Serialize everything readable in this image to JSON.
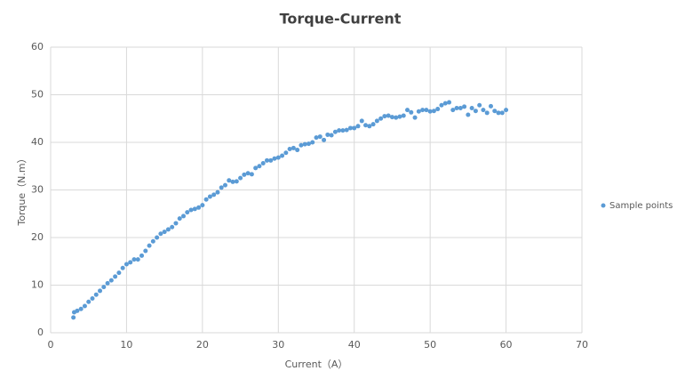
{
  "chart_data": {
    "type": "scatter",
    "title": "Torque-Current",
    "x_label": "Current（A）",
    "y_label": "Torque（N.m）",
    "x": [
      3.0,
      3.1,
      3.5,
      4,
      4.5,
      5,
      5.5,
      6,
      6.5,
      7,
      7.5,
      8,
      8.5,
      9,
      9.5,
      10,
      10.5,
      11,
      11.5,
      12,
      12.5,
      13,
      13.5,
      14,
      14.5,
      15,
      15.5,
      16,
      16.5,
      17,
      17.5,
      18,
      18.5,
      19,
      19.5,
      20,
      20.5,
      21,
      21.5,
      22,
      22.5,
      23,
      23.5,
      24,
      24.5,
      25,
      25.5,
      26,
      26.5,
      27,
      27.5,
      28,
      28.5,
      29,
      29.5,
      30,
      30.5,
      31,
      31.5,
      32,
      32.5,
      33,
      33.5,
      34,
      34.5,
      35,
      35.5,
      36,
      36.5,
      37,
      37.5,
      38,
      38.5,
      39,
      39.5,
      40,
      40.5,
      41,
      41.5,
      42,
      42.5,
      43,
      43.5,
      44,
      44.5,
      45,
      45.5,
      46,
      46.5,
      47,
      47.5,
      48,
      48.5,
      49,
      49.5,
      50,
      50.5,
      51,
      51.5,
      52,
      52.5,
      53,
      53.5,
      54,
      54.5,
      55,
      55.5,
      56,
      56.5,
      57,
      57.5,
      58,
      58.5,
      59,
      59.5,
      60
    ],
    "series": [
      {
        "name": "Sample points",
        "color": "#5b9bd5",
        "values": [
          3.2,
          4.3,
          4.6,
          5.0,
          5.6,
          6.5,
          7.2,
          8.0,
          8.8,
          9.6,
          10.4,
          11.0,
          11.8,
          12.6,
          13.6,
          14.4,
          14.8,
          15.4,
          15.4,
          16.2,
          17.2,
          18.3,
          19.2,
          20.0,
          20.8,
          21.2,
          21.7,
          22.2,
          23.0,
          24.0,
          24.5,
          25.3,
          25.8,
          26.0,
          26.3,
          26.8,
          28.0,
          28.6,
          29.0,
          29.5,
          30.5,
          31.0,
          32.0,
          31.7,
          31.8,
          32.5,
          33.2,
          33.5,
          33.3,
          34.6,
          35.0,
          35.6,
          36.2,
          36.2,
          36.6,
          36.8,
          37.2,
          37.8,
          38.6,
          38.8,
          38.4,
          39.4,
          39.6,
          39.7,
          40.0,
          41.0,
          41.2,
          40.5,
          41.6,
          41.5,
          42.2,
          42.5,
          42.5,
          42.6,
          43.0,
          43.0,
          43.4,
          44.5,
          43.6,
          43.4,
          43.8,
          44.5,
          45.0,
          45.5,
          45.6,
          45.3,
          45.2,
          45.4,
          45.6,
          46.8,
          46.3,
          45.2,
          46.5,
          46.8,
          46.8,
          46.5,
          46.6,
          47.0,
          47.8,
          48.2,
          48.4,
          46.8,
          47.2,
          47.2,
          47.5,
          45.8,
          47.2,
          46.6,
          47.8,
          46.8,
          46.2,
          47.6,
          46.6,
          46.2,
          46.2,
          46.8
        ]
      }
    ],
    "xlim": [
      0,
      70
    ],
    "xticks": [
      0,
      10,
      20,
      30,
      40,
      50,
      60,
      70
    ],
    "ylim": [
      0,
      60
    ],
    "yticks": [
      0,
      10,
      20,
      30,
      40,
      50,
      60
    ],
    "grid": true,
    "legend": "right"
  }
}
